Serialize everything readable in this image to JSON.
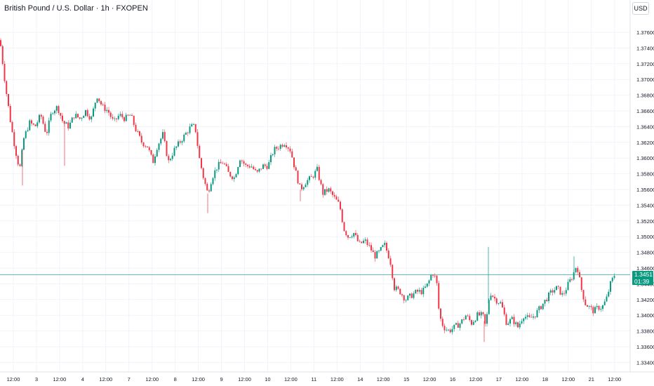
{
  "header": {
    "title": "British Pound / U.S. Dollar · 1h · FXOPEN"
  },
  "currency_button": "USD",
  "last_price": {
    "value": "1.34517",
    "countdown": "01:39"
  },
  "colors": {
    "up": "#089981",
    "down": "#f23645",
    "price_line": "#089981",
    "grid": "#f0f3fa"
  },
  "chart_data": {
    "type": "candlestick",
    "title": "British Pound / U.S. Dollar · 1h · FXOPEN",
    "y_ticks": [
      "1.37600",
      "1.37400",
      "1.37200",
      "1.37000",
      "1.36800",
      "1.36600",
      "1.36400",
      "1.36200",
      "1.36000",
      "1.35800",
      "1.35600",
      "1.35400",
      "1.35200",
      "1.35000",
      "1.34800",
      "1.34600",
      "1.34400",
      "1.34200",
      "1.34000",
      "1.33800",
      "1.33600",
      "1.33400"
    ],
    "ylim": [
      1.3335,
      1.3785
    ],
    "x_ticks": [
      "12:00",
      "3",
      "12:00",
      "4",
      "12:00",
      "7",
      "12:00",
      "8",
      "12:00",
      "9",
      "12:00",
      "10",
      "12:00",
      "11",
      "12:00",
      "14",
      "12:00",
      "15",
      "12:00",
      "16",
      "12:00",
      "17",
      "12:00",
      "18",
      "12:00",
      "21",
      "12:00"
    ],
    "grid": true,
    "close_path": [
      [
        0,
        1.375
      ],
      [
        8,
        1.369
      ],
      [
        16,
        1.364
      ],
      [
        22,
        1.361
      ],
      [
        28,
        1.3585
      ],
      [
        34,
        1.3625
      ],
      [
        42,
        1.3645
      ],
      [
        50,
        1.364
      ],
      [
        58,
        1.3655
      ],
      [
        66,
        1.363
      ],
      [
        74,
        1.366
      ],
      [
        82,
        1.3665
      ],
      [
        90,
        1.3645
      ],
      [
        98,
        1.364
      ],
      [
        106,
        1.3655
      ],
      [
        114,
        1.365
      ],
      [
        122,
        1.366
      ],
      [
        130,
        1.365
      ],
      [
        138,
        1.368
      ],
      [
        146,
        1.3665
      ],
      [
        154,
        1.366
      ],
      [
        162,
        1.3645
      ],
      [
        170,
        1.3655
      ],
      [
        178,
        1.365
      ],
      [
        186,
        1.3655
      ],
      [
        194,
        1.3635
      ],
      [
        202,
        1.362
      ],
      [
        210,
        1.3615
      ],
      [
        218,
        1.3595
      ],
      [
        224,
        1.3615
      ],
      [
        232,
        1.363
      ],
      [
        240,
        1.3595
      ],
      [
        248,
        1.361
      ],
      [
        256,
        1.362
      ],
      [
        264,
        1.363
      ],
      [
        272,
        1.364
      ],
      [
        278,
        1.364
      ],
      [
        284,
        1.36
      ],
      [
        290,
        1.3575
      ],
      [
        296,
        1.3555
      ],
      [
        302,
        1.3575
      ],
      [
        310,
        1.359
      ],
      [
        318,
        1.3595
      ],
      [
        326,
        1.358
      ],
      [
        334,
        1.3575
      ],
      [
        342,
        1.36
      ],
      [
        350,
        1.359
      ],
      [
        358,
        1.359
      ],
      [
        366,
        1.358
      ],
      [
        374,
        1.359
      ],
      [
        382,
        1.359
      ],
      [
        390,
        1.361
      ],
      [
        398,
        1.3615
      ],
      [
        406,
        1.362
      ],
      [
        414,
        1.361
      ],
      [
        422,
        1.358
      ],
      [
        428,
        1.356
      ],
      [
        436,
        1.357
      ],
      [
        444,
        1.3575
      ],
      [
        452,
        1.3585
      ],
      [
        460,
        1.3555
      ],
      [
        468,
        1.356
      ],
      [
        476,
        1.355
      ],
      [
        484,
        1.354
      ],
      [
        490,
        1.351
      ],
      [
        496,
        1.35
      ],
      [
        504,
        1.3505
      ],
      [
        512,
        1.349
      ],
      [
        520,
        1.3495
      ],
      [
        528,
        1.3485
      ],
      [
        534,
        1.3475
      ],
      [
        540,
        1.348
      ],
      [
        548,
        1.349
      ],
      [
        556,
        1.347
      ],
      [
        562,
        1.3435
      ],
      [
        570,
        1.343
      ],
      [
        578,
        1.342
      ],
      [
        586,
        1.3425
      ],
      [
        594,
        1.343
      ],
      [
        602,
        1.343
      ],
      [
        610,
        1.344
      ],
      [
        616,
        1.3455
      ],
      [
        622,
        1.3445
      ],
      [
        626,
        1.34
      ],
      [
        632,
        1.3385
      ],
      [
        640,
        1.338
      ],
      [
        648,
        1.3385
      ],
      [
        656,
        1.339
      ],
      [
        664,
        1.34
      ],
      [
        672,
        1.339
      ],
      [
        680,
        1.34
      ],
      [
        688,
        1.34
      ],
      [
        692,
        1.3385
      ],
      [
        698,
        1.343
      ],
      [
        706,
        1.342
      ],
      [
        714,
        1.3415
      ],
      [
        722,
        1.339
      ],
      [
        730,
        1.3395
      ],
      [
        738,
        1.3385
      ],
      [
        746,
        1.34
      ],
      [
        754,
        1.3395
      ],
      [
        762,
        1.34
      ],
      [
        770,
        1.341
      ],
      [
        778,
        1.342
      ],
      [
        786,
        1.343
      ],
      [
        794,
        1.3435
      ],
      [
        802,
        1.3425
      ],
      [
        810,
        1.344
      ],
      [
        816,
        1.345
      ],
      [
        822,
        1.3465
      ],
      [
        828,
        1.3435
      ],
      [
        834,
        1.3415
      ],
      [
        840,
        1.341
      ],
      [
        846,
        1.3405
      ],
      [
        852,
        1.341
      ],
      [
        858,
        1.341
      ],
      [
        864,
        1.342
      ],
      [
        870,
        1.344
      ],
      [
        876,
        1.3452
      ]
    ],
    "spikes": [
      {
        "x": 32,
        "low": 1.3565
      },
      {
        "x": 92,
        "low": 1.359
      },
      {
        "x": 296,
        "low": 1.353
      },
      {
        "x": 428,
        "low": 1.3545
      },
      {
        "x": 696,
        "high": 1.3487
      },
      {
        "x": 690,
        "low": 1.3366
      },
      {
        "x": 818,
        "high": 1.3475
      }
    ]
  }
}
